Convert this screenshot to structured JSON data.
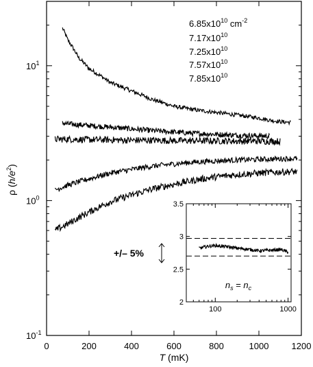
{
  "chart_data": [
    {
      "type": "line",
      "title": "",
      "xlabel": "T (mK)",
      "xlabel_parts": {
        "symbol": "T",
        "unit": " (mK)"
      },
      "ylabel": "ρ (h/e²)",
      "ylabel_parts": {
        "symbol": "ρ (",
        "unit": "h/e",
        "sup": "2",
        "close": ")"
      },
      "xlim": [
        0,
        1200
      ],
      "ylim": [
        0.1,
        30
      ],
      "yscale": "log",
      "x_ticks": [
        "0",
        "200",
        "400",
        "600",
        "800",
        "1000",
        "1200"
      ],
      "y_ticks": [
        {
          "value": 0.1,
          "base": "10",
          "exp": "-1"
        },
        {
          "value": 1,
          "base": "10",
          "exp": "0"
        },
        {
          "value": 10,
          "base": "10",
          "exp": "1"
        }
      ],
      "grid": false,
      "legend_position": "top-right",
      "legend": [
        {
          "text": "6.85x10",
          "exp": "10",
          "unit": " cm",
          "unit_exp": "-2"
        },
        {
          "text": "7.17x10",
          "exp": "10"
        },
        {
          "text": "7.25x10",
          "exp": "10"
        },
        {
          "text": "7.57x10",
          "exp": "10"
        },
        {
          "text": "7.85x10",
          "exp": "10"
        }
      ],
      "series": [
        {
          "x": [
            75,
            100,
            150,
            200,
            300,
            400,
            500,
            600,
            700,
            800,
            900,
            1000,
            1050,
            1100,
            1150
          ],
          "y": [
            19.0,
            15.5,
            11.5,
            9.5,
            7.5,
            6.5,
            5.6,
            5.0,
            4.7,
            4.5,
            4.3,
            4.1,
            3.95,
            3.85,
            3.8
          ],
          "noise": 0.015
        },
        {
          "x": [
            75,
            100,
            200,
            300,
            400,
            500,
            600,
            700,
            800,
            900,
            1000,
            1050
          ],
          "y": [
            3.75,
            3.7,
            3.6,
            3.5,
            3.4,
            3.3,
            3.22,
            3.15,
            3.1,
            3.05,
            3.02,
            3.0
          ],
          "noise": 0.02
        },
        {
          "x": [
            40,
            100,
            200,
            300,
            400,
            500,
            600,
            700,
            800,
            900,
            1000,
            1100
          ],
          "y": [
            2.85,
            2.85,
            2.83,
            2.82,
            2.8,
            2.8,
            2.78,
            2.78,
            2.77,
            2.76,
            2.76,
            2.75
          ],
          "noise": 0.025
        },
        {
          "x": [
            40,
            100,
            200,
            300,
            400,
            500,
            600,
            700,
            800,
            900,
            1000,
            1100,
            1180
          ],
          "y": [
            1.2,
            1.3,
            1.45,
            1.6,
            1.7,
            1.8,
            1.87,
            1.93,
            1.97,
            2.0,
            2.02,
            2.04,
            2.05
          ],
          "noise": 0.02
        },
        {
          "x": [
            40,
            100,
            200,
            300,
            400,
            500,
            600,
            700,
            800,
            900,
            1000,
            1100,
            1180
          ],
          "y": [
            0.6,
            0.67,
            0.82,
            0.98,
            1.1,
            1.22,
            1.32,
            1.42,
            1.5,
            1.56,
            1.6,
            1.63,
            1.64
          ],
          "noise": 0.025
        }
      ]
    },
    {
      "type": "line",
      "title": "",
      "xlabel": "",
      "ylabel": "",
      "xscale": "log",
      "xlim": [
        40,
        1100
      ],
      "ylim": [
        2,
        3.5
      ],
      "x_ticks": [
        "100",
        "1000"
      ],
      "y_ticks": [
        "3.5",
        "3",
        "2.5",
        "2"
      ],
      "grid": false,
      "dashed_lines": [
        2.97,
        2.7
      ],
      "annotation": {
        "a": "n",
        "a_sub": "s",
        "eq": " = ",
        "b": "n",
        "b_sub": "c"
      },
      "side_note": "+/– 5%",
      "series": [
        {
          "x": [
            60,
            80,
            100,
            150,
            200,
            300,
            400,
            600,
            800,
            1000
          ],
          "y": [
            2.82,
            2.85,
            2.86,
            2.84,
            2.82,
            2.8,
            2.78,
            2.79,
            2.8,
            2.76
          ],
          "noise": 0.025
        }
      ]
    }
  ]
}
